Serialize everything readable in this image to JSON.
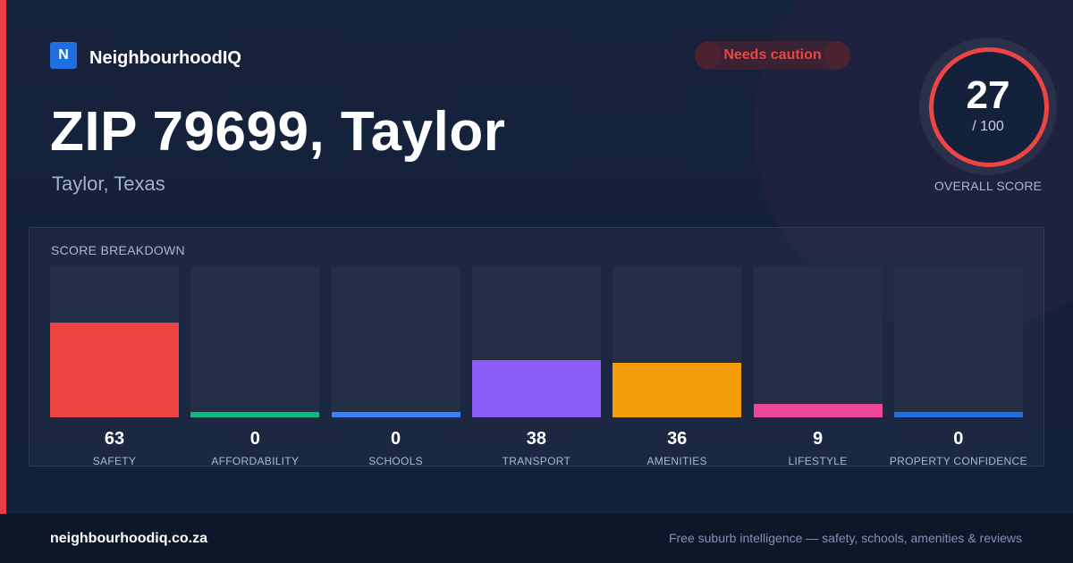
{
  "brand": {
    "logo_letter": "N",
    "name": "NeighbourhoodIQ"
  },
  "status_badge": {
    "label": "Needs caution",
    "color": "#ef4444"
  },
  "page_title": "ZIP 79699, Taylor",
  "subtitle": "Taylor, Texas",
  "overall_score": {
    "value": "27",
    "max_label": "/ 100",
    "caption": "OVERALL SCORE",
    "ring_color": "#ef4444"
  },
  "breakdown": {
    "title": "SCORE BREAKDOWN",
    "items": [
      {
        "label": "SAFETY",
        "value": "63",
        "percent": 63,
        "color": "#ef4444"
      },
      {
        "label": "AFFORDABILITY",
        "value": "0",
        "percent": 0,
        "color": "#10b981"
      },
      {
        "label": "SCHOOLS",
        "value": "0",
        "percent": 0,
        "color": "#3b82f6"
      },
      {
        "label": "TRANSPORT",
        "value": "38",
        "percent": 38,
        "color": "#8b5cf6"
      },
      {
        "label": "AMENITIES",
        "value": "36",
        "percent": 36,
        "color": "#f59e0b"
      },
      {
        "label": "LIFESTYLE",
        "value": "9",
        "percent": 9,
        "color": "#ec4899"
      },
      {
        "label": "PROPERTY CONFIDENCE",
        "value": "0",
        "percent": 0,
        "color": "#1f6fe0"
      }
    ]
  },
  "footer": {
    "domain": "neighbourhoodiq.co.za",
    "tagline": "Free suburb intelligence — safety, schools, amenities & reviews"
  }
}
